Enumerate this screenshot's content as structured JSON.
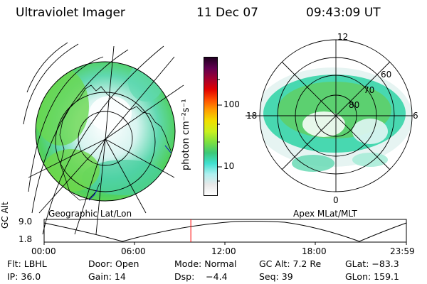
{
  "header": {
    "instrument": "Ultraviolet Imager",
    "date": "11 Dec 07",
    "time": "09:43:09 UT"
  },
  "left_map": {
    "label": "Geographic Lat/Lon"
  },
  "right_map": {
    "label": "Apex MLat/MLT",
    "mlt_labels": {
      "top": "12",
      "left": "18",
      "right": "6",
      "bottom": "0"
    },
    "lat_labels": [
      "60",
      "70",
      "80"
    ]
  },
  "colorbar": {
    "unit_label": "photon cm⁻²s⁻¹",
    "ticks": [
      "100",
      "10"
    ],
    "colors": [
      "#ffffff",
      "#e8e8e8",
      "#aef0f0",
      "#40e0d0",
      "#3cc878",
      "#7ce040",
      "#c8f020",
      "#f0e000",
      "#ffa000",
      "#ff5000",
      "#e00000",
      "#a00030",
      "#600050",
      "#200020"
    ]
  },
  "timeline": {
    "axis_label": "GC Alt",
    "y_ticks": [
      "9.0",
      "1.8"
    ],
    "x_ticks": [
      "00:00",
      "06:00",
      "12:00",
      "18:00",
      "23:59"
    ],
    "current_time_fraction": 0.405,
    "marker_color": "#ff0000"
  },
  "status": {
    "row1": [
      {
        "key": "flt",
        "text": "Flt: LBHL"
      },
      {
        "key": "door",
        "text": "Door: Open"
      },
      {
        "key": "mode",
        "text": "Mode: Normal"
      },
      {
        "key": "gcalt",
        "text": "GC Alt: 7.2 Re"
      },
      {
        "key": "glat",
        "text": "GLat: −83.3"
      }
    ],
    "row2": [
      {
        "key": "ip",
        "text": "IP: 36.0"
      },
      {
        "key": "gain",
        "text": "Gain: 14"
      },
      {
        "key": "dsp",
        "text": "Dsp:    −4.4"
      },
      {
        "key": "seq",
        "text": "Seq: 39"
      },
      {
        "key": "glon",
        "text": "GLon: 159.1"
      }
    ]
  }
}
